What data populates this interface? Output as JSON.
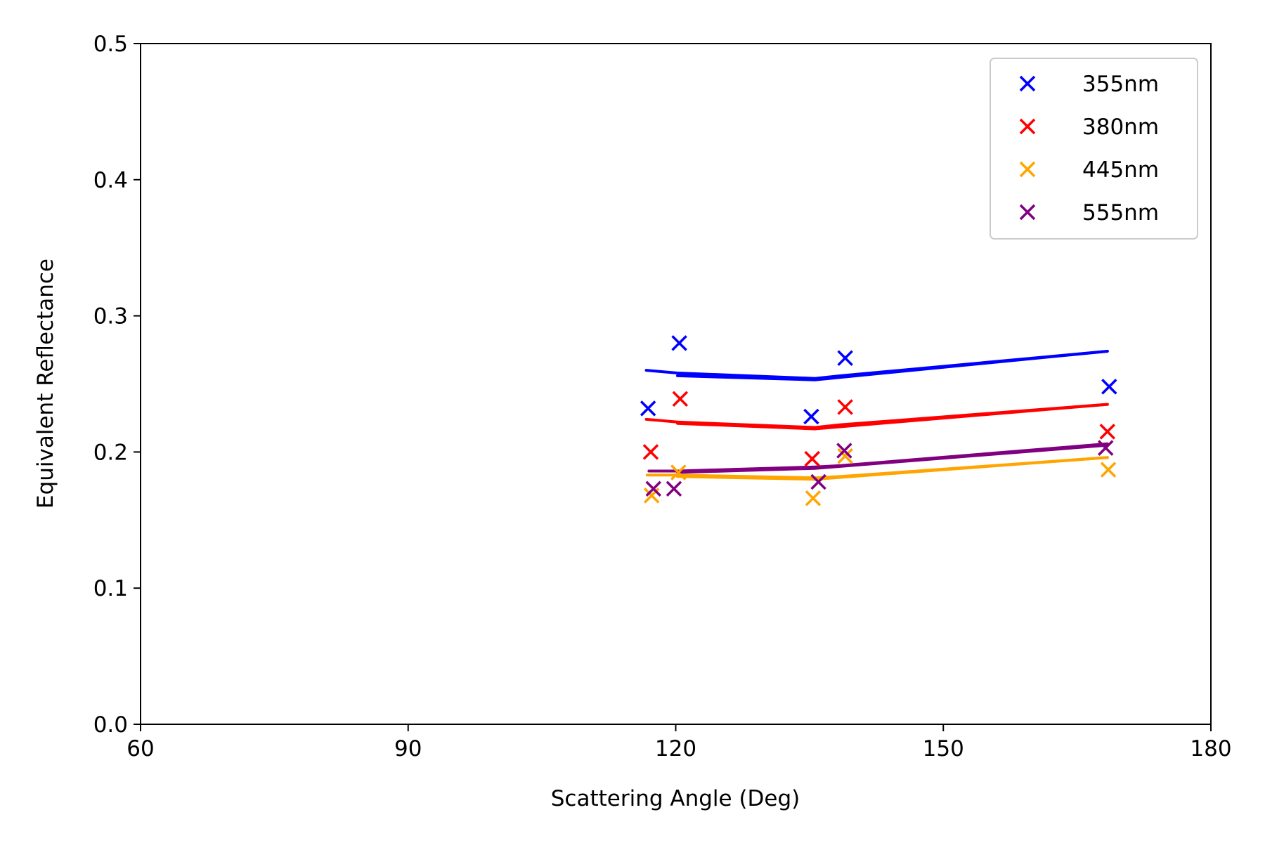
{
  "chart_data": {
    "type": "scatter",
    "title": "",
    "xlabel": "Scattering Angle (Deg)",
    "ylabel": "Equivalent Reflectance",
    "xlim": [
      60,
      180
    ],
    "ylim": [
      0.0,
      0.5
    ],
    "xticks": [
      60,
      90,
      120,
      150,
      180
    ],
    "xtick_labels": [
      "60",
      "90",
      "120",
      "150",
      "180"
    ],
    "yticks": [
      0.0,
      0.1,
      0.2,
      0.3,
      0.4,
      0.5
    ],
    "ytick_labels": [
      "0.0",
      "0.1",
      "0.2",
      "0.3",
      "0.4",
      "0.5"
    ],
    "grid": false,
    "legend_position": "top-right",
    "series": [
      {
        "name": "355nm",
        "color": "#0000ff",
        "marker": "x",
        "points": [
          [
            116.9,
            0.232
          ],
          [
            120.4,
            0.28
          ],
          [
            135.2,
            0.226
          ],
          [
            139.0,
            0.269
          ],
          [
            168.6,
            0.248
          ]
        ],
        "fit_lines": [
          [
            [
              116.7,
              0.26
            ],
            [
              120.2,
              0.258
            ],
            [
              135.6,
              0.254
            ],
            [
              138.5,
              0.256
            ],
            [
              168.4,
              0.274
            ]
          ],
          [
            [
              120.2,
              0.256
            ],
            [
              135.6,
              0.253
            ],
            [
              168.4,
              0.274
            ]
          ]
        ]
      },
      {
        "name": "380nm",
        "color": "#ff0000",
        "marker": "x",
        "points": [
          [
            117.2,
            0.2
          ],
          [
            120.5,
            0.239
          ],
          [
            135.3,
            0.195
          ],
          [
            139.0,
            0.233
          ],
          [
            168.4,
            0.215
          ]
        ],
        "fit_lines": [
          [
            [
              116.7,
              0.224
            ],
            [
              120.2,
              0.222
            ],
            [
              135.6,
              0.218
            ],
            [
              138.5,
              0.22
            ],
            [
              168.4,
              0.235
            ]
          ],
          [
            [
              120.2,
              0.221
            ],
            [
              135.6,
              0.217
            ],
            [
              168.4,
              0.235
            ]
          ]
        ]
      },
      {
        "name": "445nm",
        "color": "#ffa500",
        "marker": "x",
        "points": [
          [
            117.3,
            0.168
          ],
          [
            120.3,
            0.185
          ],
          [
            135.4,
            0.166
          ],
          [
            139.0,
            0.197
          ],
          [
            168.5,
            0.187
          ]
        ],
        "fit_lines": [
          [
            [
              116.8,
              0.183
            ],
            [
              120.2,
              0.183
            ],
            [
              135.6,
              0.181
            ],
            [
              138.5,
              0.182
            ],
            [
              168.4,
              0.196
            ]
          ],
          [
            [
              120.2,
              0.182
            ],
            [
              135.6,
              0.18
            ],
            [
              168.4,
              0.196
            ]
          ]
        ]
      },
      {
        "name": "555nm",
        "color": "#800080",
        "marker": "x",
        "points": [
          [
            117.5,
            0.173
          ],
          [
            119.8,
            0.173
          ],
          [
            136.0,
            0.178
          ],
          [
            138.9,
            0.201
          ],
          [
            168.2,
            0.203
          ]
        ],
        "fit_lines": [
          [
            [
              117.0,
              0.186
            ],
            [
              120.2,
              0.186
            ],
            [
              135.6,
              0.189
            ],
            [
              138.5,
              0.19
            ],
            [
              168.4,
              0.206
            ]
          ],
          [
            [
              120.2,
              0.185
            ],
            [
              135.6,
              0.188
            ],
            [
              168.4,
              0.205
            ]
          ]
        ]
      }
    ]
  }
}
